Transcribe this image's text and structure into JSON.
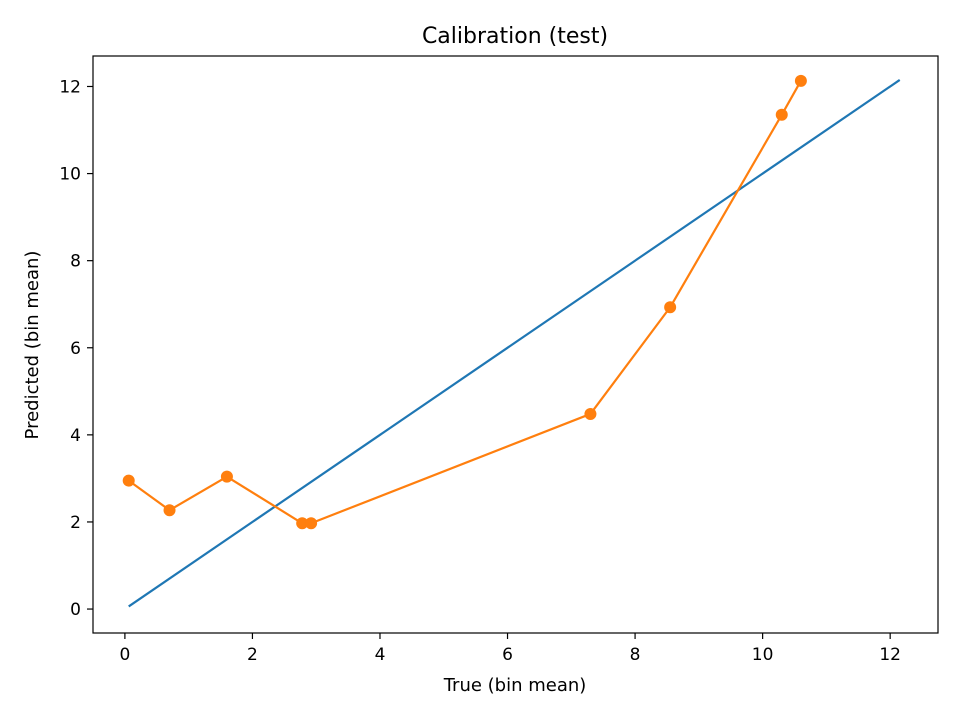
{
  "chart_data": {
    "type": "line",
    "title": "Calibration (test)",
    "xlabel": "True (bin mean)",
    "ylabel": "Predicted (bin mean)",
    "xlim": [
      -0.5,
      12.75
    ],
    "ylim": [
      -0.55,
      12.7
    ],
    "xticks": [
      0,
      2,
      4,
      6,
      8,
      10,
      12
    ],
    "yticks": [
      0,
      2,
      4,
      6,
      8,
      10,
      12
    ],
    "grid": false,
    "legend": "none",
    "series": [
      {
        "kind": "reference-line",
        "color": "#1f77b4",
        "x": [
          0.06,
          12.15
        ],
        "y": [
          0.06,
          12.15
        ]
      },
      {
        "kind": "line-with-markers",
        "color": "#ff7f0e",
        "x": [
          0.06,
          0.7,
          1.6,
          2.78,
          2.92,
          7.3,
          8.55,
          10.3,
          10.6
        ],
        "y": [
          2.95,
          2.27,
          3.04,
          1.97,
          1.97,
          4.48,
          6.93,
          11.35,
          12.13
        ]
      }
    ]
  }
}
